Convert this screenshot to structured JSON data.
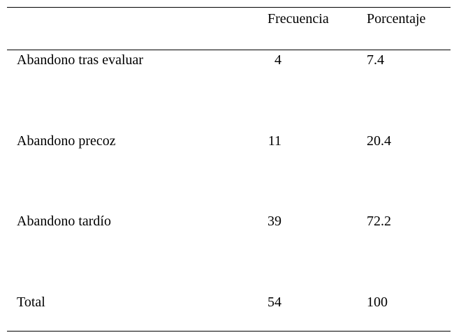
{
  "table": {
    "header": [
      "Frecuencia",
      "Porcentaje"
    ],
    "rows": [
      [
        "Abandono tras evaluar",
        4,
        7.4
      ],
      [
        "Abandono precoz",
        11,
        20.4
      ],
      [
        "Abandono tardío",
        39,
        72.2
      ],
      [
        "Total",
        54,
        100
      ]
    ]
  }
}
